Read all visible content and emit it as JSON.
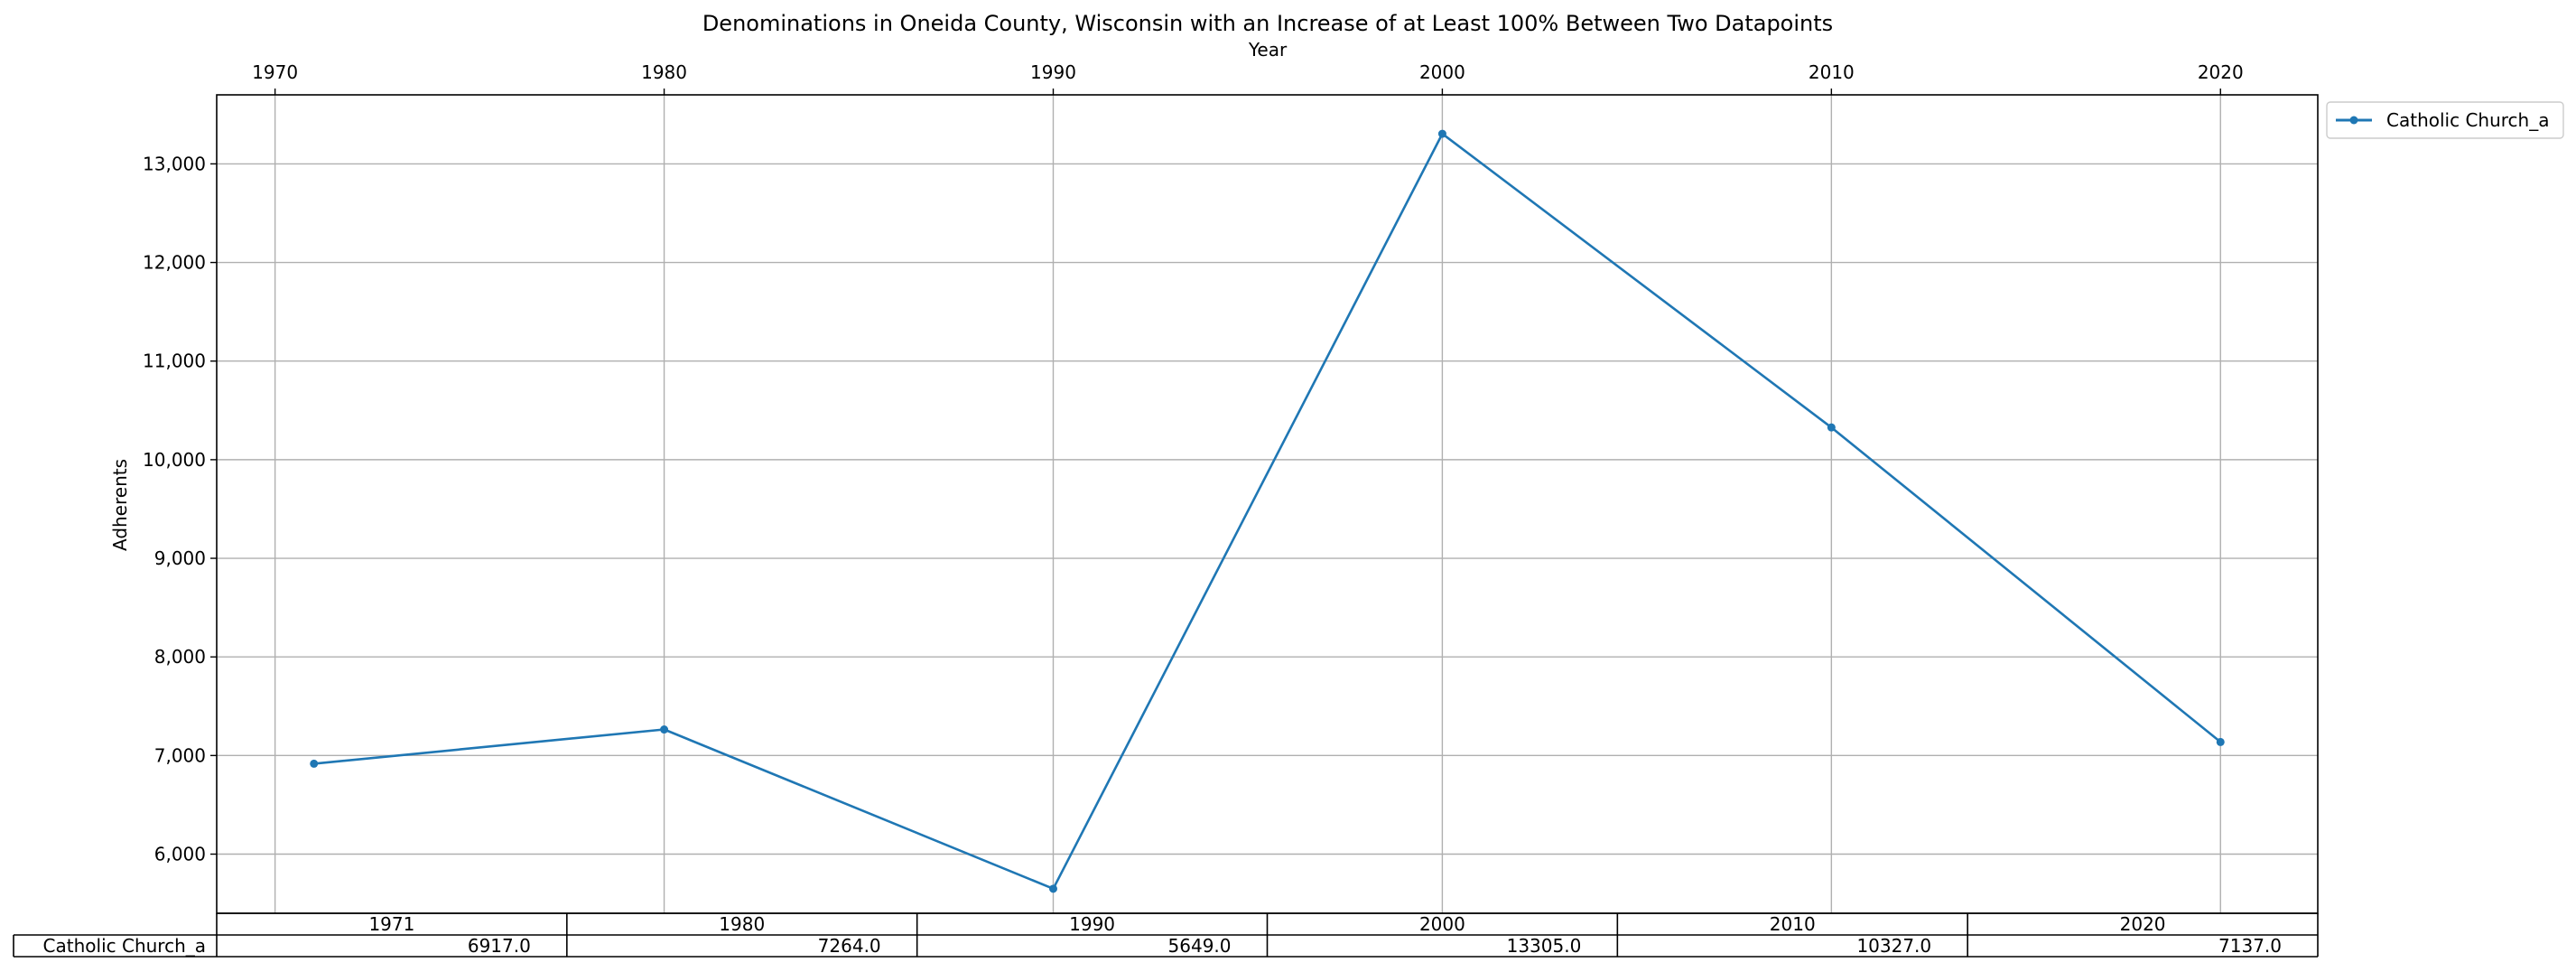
{
  "chart_data": {
    "type": "line",
    "title": "Denominations in Oneida County, Wisconsin with an Increase of at Least 100% Between Two Datapoints",
    "xlabel": "Year",
    "ylabel": "Adherents",
    "x_ticks": [
      "1970",
      "1980",
      "1990",
      "2000",
      "2010",
      "2020"
    ],
    "x_tick_values": [
      1970,
      1980,
      1990,
      2000,
      2010,
      2020
    ],
    "xlim": [
      1968.5,
      2022.5
    ],
    "y_ticks": [
      "6,000",
      "7,000",
      "8,000",
      "9,000",
      "10,000",
      "11,000",
      "12,000",
      "13,000"
    ],
    "y_tick_values": [
      6000,
      7000,
      8000,
      9000,
      10000,
      11000,
      12000,
      13000
    ],
    "ylim": [
      5400,
      13700
    ],
    "x_axis_position": "top",
    "grid": true,
    "legend_placement": "outside-top-right",
    "color": "#1f77b4",
    "x": [
      1971,
      1980,
      1990,
      2000,
      2010,
      2020
    ],
    "series": [
      {
        "name": "Catholic Church_a",
        "values": [
          6917,
          7264,
          5649,
          13305,
          10327,
          7137
        ]
      }
    ],
    "table": {
      "columns": [
        "1971",
        "1980",
        "1990",
        "2000",
        "2010",
        "2020"
      ],
      "row_label": "Catholic Church_a",
      "cells": [
        "6917.0",
        "7264.0",
        "5649.0",
        "13305.0",
        "10327.0",
        "7137.0"
      ]
    }
  }
}
